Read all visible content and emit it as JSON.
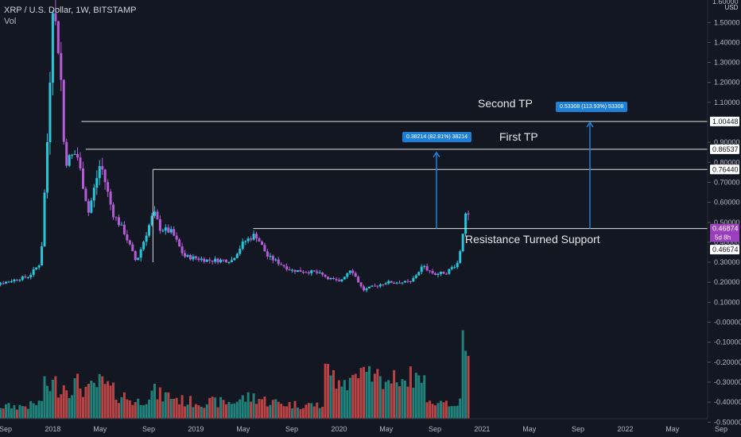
{
  "header": {
    "symbol": "XRP / U.S. Dollar, 1W, BITSTAMP",
    "vol": "Vol"
  },
  "axis": {
    "unit": "USD",
    "top_label": "1.60000",
    "ticks": [
      {
        "v": 1.5,
        "t": "1.50000"
      },
      {
        "v": 1.4,
        "t": "1.40000"
      },
      {
        "v": 1.3,
        "t": "1.30000"
      },
      {
        "v": 1.2,
        "t": "1.20000"
      },
      {
        "v": 1.1,
        "t": "1.10000"
      },
      {
        "v": 0.9,
        "t": "0.90000"
      },
      {
        "v": 0.8,
        "t": "0.80000"
      },
      {
        "v": 0.7,
        "t": "0.70000"
      },
      {
        "v": 0.6,
        "t": "0.60000"
      },
      {
        "v": 0.5,
        "t": "0.50000"
      },
      {
        "v": 0.4,
        "t": "0.40000"
      },
      {
        "v": 0.3,
        "t": "0.30000"
      },
      {
        "v": 0.2,
        "t": "0.20000"
      },
      {
        "v": 0.1,
        "t": "0.10000"
      },
      {
        "v": 0.0,
        "t": "-0.00000"
      },
      {
        "v": -0.1,
        "t": "-0.10000"
      },
      {
        "v": -0.2,
        "t": "-0.20000"
      },
      {
        "v": -0.3,
        "t": "-0.30000"
      },
      {
        "v": -0.4,
        "t": "-0.40000"
      },
      {
        "v": -0.5,
        "t": "-0.50000"
      }
    ],
    "level_labels": [
      {
        "v": 1.00448,
        "t": "1.00448",
        "color": "#ffffff",
        "text": "#131722"
      },
      {
        "v": 0.86537,
        "t": "0.86537",
        "color": "#ffffff",
        "text": "#131722"
      },
      {
        "v": 0.7644,
        "t": "0.76440",
        "color": "#ffffff",
        "text": "#131722"
      },
      {
        "v": 0.46874,
        "t": "0.46874",
        "color": "#9c3fbf",
        "text": "#ffffff"
      },
      {
        "v": 0.46674,
        "t": "0.46674",
        "color": "#ffffff",
        "text": "#131722"
      }
    ],
    "countdown": "5d 8h"
  },
  "time_axis": [
    {
      "d": 2017.67,
      "t": "Sep"
    },
    {
      "d": 2018.0,
      "t": "2018"
    },
    {
      "d": 2018.33,
      "t": "May"
    },
    {
      "d": 2018.67,
      "t": "Sep"
    },
    {
      "d": 2019.0,
      "t": "2019"
    },
    {
      "d": 2019.33,
      "t": "May"
    },
    {
      "d": 2019.67,
      "t": "Sep"
    },
    {
      "d": 2020.0,
      "t": "2020"
    },
    {
      "d": 2020.33,
      "t": "May"
    },
    {
      "d": 2020.67,
      "t": "Sep"
    },
    {
      "d": 2021.0,
      "t": "2021"
    },
    {
      "d": 2021.33,
      "t": "May"
    },
    {
      "d": 2021.67,
      "t": "Sep"
    },
    {
      "d": 2022.0,
      "t": "2022"
    },
    {
      "d": 2022.33,
      "t": "May"
    },
    {
      "d": 2022.67,
      "t": "Sep"
    }
  ],
  "annotations": {
    "second_tp": "Second TP",
    "first_tp": "First TP",
    "support": "Resistance Turned Support",
    "measure1": "0.38214 (82.81%) 38214",
    "measure2": "0.53308 (113.93%) 53308"
  },
  "colors": {
    "up": "#26c6da",
    "down": "#b55bd6",
    "vol_up": "#26a69a",
    "vol_down": "#ef5350",
    "bg": "#131722",
    "measure": "#1e7fd6"
  },
  "chart_data": {
    "type": "candlestick",
    "title": "XRP / U.S. Dollar, 1W, BITSTAMP",
    "ylabel": "USD",
    "ylim": [
      -0.5,
      1.6
    ],
    "x_range": [
      "2017-07",
      "2022-11"
    ],
    "grid": false,
    "horizontal_levels": [
      1.00448,
      0.86537,
      0.7644,
      0.46874
    ],
    "price_path": [
      [
        "2017-07",
        0.18
      ],
      [
        "2017-09",
        0.2
      ],
      [
        "2017-11",
        0.23
      ],
      [
        "2017-12",
        0.3
      ],
      [
        "2017-12-20",
        1.0
      ],
      [
        "2018-01",
        1.6
      ],
      [
        "2018-01-20",
        1.3
      ],
      [
        "2018-02",
        0.8
      ],
      [
        "2018-03",
        0.85
      ],
      [
        "2018-04",
        0.55
      ],
      [
        "2018-05",
        0.8
      ],
      [
        "2018-06",
        0.55
      ],
      [
        "2018-07",
        0.45
      ],
      [
        "2018-08",
        0.3
      ],
      [
        "2018-09-15",
        0.55
      ],
      [
        "2018-10",
        0.47
      ],
      [
        "2018-11",
        0.45
      ],
      [
        "2018-12",
        0.33
      ],
      [
        "2019-02",
        0.31
      ],
      [
        "2019-04",
        0.31
      ],
      [
        "2019-05",
        0.4
      ],
      [
        "2019-06",
        0.44
      ],
      [
        "2019-07",
        0.33
      ],
      [
        "2019-09",
        0.26
      ],
      [
        "2019-11",
        0.25
      ],
      [
        "2020-01",
        0.2
      ],
      [
        "2020-02",
        0.27
      ],
      [
        "2020-03",
        0.16
      ],
      [
        "2020-05",
        0.2
      ],
      [
        "2020-07",
        0.2
      ],
      [
        "2020-08",
        0.28
      ],
      [
        "2020-09",
        0.24
      ],
      [
        "2020-10",
        0.25
      ],
      [
        "2020-11",
        0.3
      ],
      [
        "2020-11-20",
        0.55
      ],
      [
        "2020-12",
        0.5
      ]
    ]
  }
}
